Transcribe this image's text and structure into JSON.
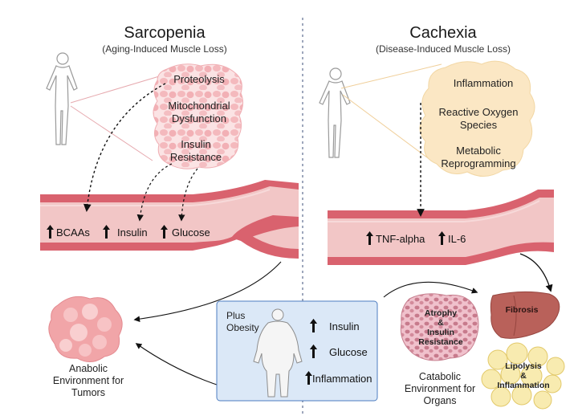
{
  "left": {
    "title": "Sarcopenia",
    "subtitle": "(Aging-Induced Muscle Loss)",
    "factors": [
      "Proteolysis",
      "Mitochondrial\nDysfunction",
      "Insulin\nResistance"
    ],
    "vessel_markers": [
      "BCAAs",
      "Insulin",
      "Glucose"
    ],
    "outcome": "Anabolic\nEnvironment for\nTumors"
  },
  "right": {
    "title": "Cachexia",
    "subtitle": "(Disease-Induced Muscle Loss)",
    "factors": [
      "Inflammation",
      "Reactive Oxygen\nSpecies",
      "Metabolic\nReprogramming"
    ],
    "vessel_markers": [
      "TNF-alpha",
      "IL-6"
    ],
    "organs": {
      "muscle": "Atrophy\n&\nInsulin\nResistance",
      "liver": "Fibrosis",
      "fat": "Lipolysis\n&\nInflammation"
    },
    "outcome": "Catabolic\nEnvironment for\nOrgans"
  },
  "obesity_box": {
    "label": "Plus\nObesity",
    "markers": [
      "Insulin",
      "Glucose",
      "Inflammation"
    ]
  },
  "colors": {
    "vessel_outer": "#d9626e",
    "vessel_inner": "#f2c6c6",
    "muscle_pink": "#f6c9cc",
    "cachexia_cloud": "#fbe7c4",
    "obesity_box": "#dbe8f7",
    "liver": "#b9615a",
    "fat": "#f8ebb0"
  },
  "icons": [
    "human-silhouette-icon",
    "obese-human-icon",
    "up-arrow-icon",
    "tumor-icon",
    "liver-icon",
    "fat-cells-icon",
    "muscle-fiber-icon"
  ]
}
